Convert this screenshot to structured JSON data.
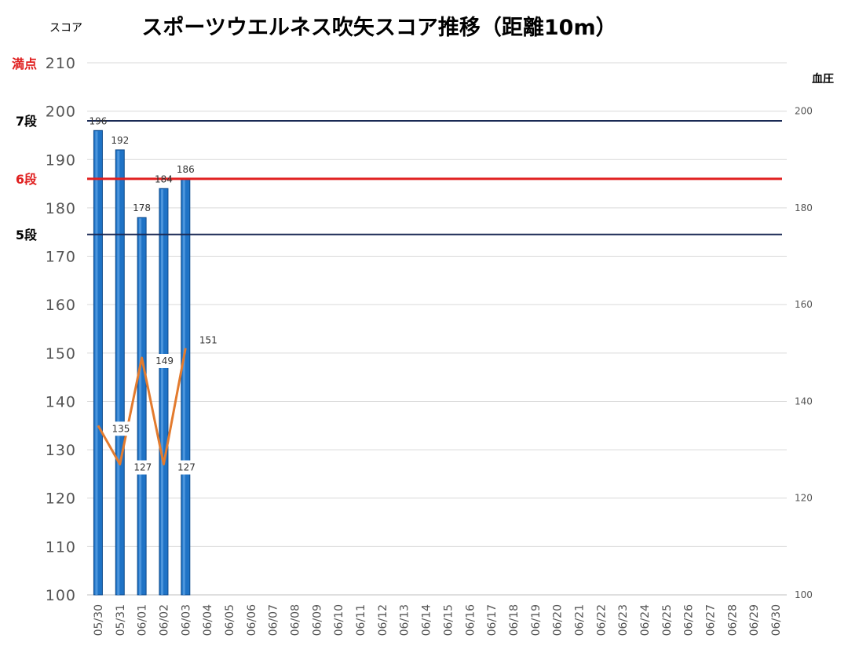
{
  "chart_data": {
    "type": "bar",
    "title": "スポーツウエルネス吹矢スコア推移（距離10m）",
    "ylabel": "スコア",
    "y2label": "血圧",
    "ylim": [
      100,
      210
    ],
    "yticks": [
      100,
      110,
      120,
      130,
      140,
      150,
      160,
      170,
      180,
      190,
      200,
      210
    ],
    "y2lim": [
      100,
      210
    ],
    "y2ticks": [
      100,
      120,
      140,
      160,
      180,
      200
    ],
    "grid": true,
    "categories": [
      "05/30",
      "05/31",
      "06/01",
      "06/02",
      "06/03",
      "06/04",
      "06/05",
      "06/06",
      "06/07",
      "06/08",
      "06/09",
      "06/10",
      "06/11",
      "06/12",
      "06/13",
      "06/14",
      "06/15",
      "06/16",
      "06/17",
      "06/18",
      "06/19",
      "06/20",
      "06/21",
      "06/22",
      "06/23",
      "06/24",
      "06/25",
      "06/26",
      "06/27",
      "06/28",
      "06/29",
      "06/30"
    ],
    "bar_series": {
      "values": [
        196,
        192,
        178,
        184,
        186
      ],
      "color": "#1f73c6"
    },
    "line_series": {
      "axis": "right",
      "values": [
        135,
        127,
        149,
        127,
        151
      ],
      "labels": [
        "135",
        "127",
        "149",
        "127",
        "151"
      ],
      "color": "#e37b2e"
    },
    "reference_lines": [
      {
        "label": "満点",
        "value": 210,
        "color": "#e02020",
        "line": false
      },
      {
        "label": "7段",
        "value": 198,
        "color": "#000000",
        "line_color": "#1a2a55",
        "line": true
      },
      {
        "label": "6段",
        "value": 186,
        "color": "#e02020",
        "line_color": "#e02020",
        "line": true
      },
      {
        "label": "5段",
        "value": 174.5,
        "color": "#000000",
        "line_color": "#1a2a55",
        "line": true
      }
    ]
  }
}
